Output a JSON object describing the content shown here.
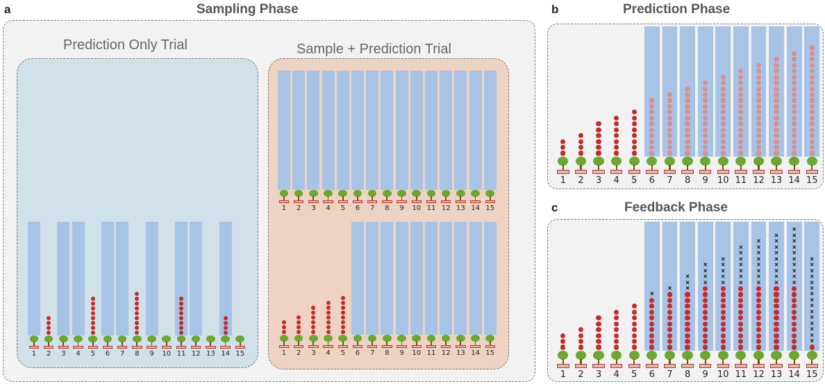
{
  "panels": {
    "a": {
      "letter": "a",
      "title": "Sampling Phase"
    },
    "b": {
      "letter": "b",
      "title": "Prediction Phase"
    },
    "c": {
      "letter": "c",
      "title": "Feedback Phase"
    }
  },
  "trials": {
    "prediction_only": {
      "label": "Prediction Only Trial"
    },
    "sample_prediction": {
      "label": "Sample + Prediction Trial"
    }
  },
  "tree_numbers": [
    "1",
    "2",
    "3",
    "4",
    "5",
    "6",
    "7",
    "8",
    "9",
    "10",
    "11",
    "12",
    "13",
    "14",
    "15"
  ],
  "colors": {
    "cover": "#a7c4e6",
    "apple": "#c62a2a",
    "apple_predicted": "#d78f8f",
    "tree": "#6aa82e",
    "crate": "#e4b5a9",
    "prediction_only_background": "#d0e1ea",
    "sample_prediction_background": "#eed3c2",
    "phase_background": "#f2f2f2"
  },
  "stages": {
    "prediction_only": {
      "covered": [
        true,
        false,
        true,
        true,
        false,
        true,
        true,
        false,
        true,
        false,
        true,
        true,
        false,
        true,
        false
      ],
      "apples": [
        0,
        4,
        0,
        0,
        8,
        0,
        0,
        9,
        0,
        0,
        8,
        0,
        0,
        4,
        0
      ],
      "predicted": [],
      "crosses": []
    },
    "sample_top": {
      "covered": [
        true,
        true,
        true,
        true,
        true,
        true,
        true,
        true,
        true,
        true,
        true,
        true,
        true,
        true,
        true
      ],
      "apples": [],
      "predicted": [],
      "crosses": []
    },
    "sample_bottom": {
      "covered": [
        false,
        false,
        false,
        false,
        false,
        true,
        true,
        true,
        true,
        true,
        true,
        true,
        true,
        true,
        true
      ],
      "apples": [
        3,
        4,
        6,
        7,
        8,
        0,
        0,
        0,
        0,
        0,
        0,
        0,
        0,
        0,
        0
      ],
      "predicted": [],
      "crosses": []
    },
    "prediction_phase": {
      "covered": [
        false,
        false,
        false,
        false,
        false,
        true,
        true,
        true,
        true,
        true,
        true,
        true,
        true,
        true,
        true
      ],
      "apples": [
        3,
        4,
        6,
        7,
        8,
        0,
        0,
        0,
        0,
        0,
        0,
        0,
        0,
        0,
        0
      ],
      "predicted": [
        0,
        0,
        0,
        0,
        0,
        10,
        11,
        12,
        13,
        14,
        15,
        16,
        17,
        18,
        19
      ],
      "crosses": []
    },
    "feedback_phase": {
      "covered": [
        false,
        false,
        false,
        false,
        false,
        true,
        true,
        true,
        true,
        true,
        true,
        true,
        true,
        true,
        true
      ],
      "apples": [
        3,
        4,
        6,
        7,
        8,
        9,
        10,
        10,
        11,
        11,
        11,
        11,
        11,
        11,
        1
      ],
      "predicted": [],
      "crosses": [
        0,
        0,
        0,
        0,
        0,
        1,
        1,
        3,
        4,
        5,
        7,
        8,
        9,
        10,
        15
      ]
    }
  }
}
